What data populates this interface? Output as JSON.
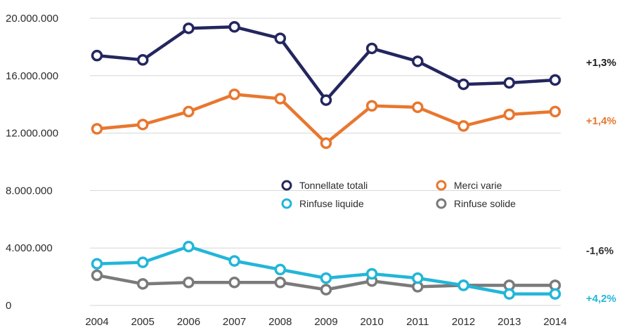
{
  "chart_data": {
    "type": "line",
    "categories": [
      "2004",
      "2005",
      "2006",
      "2007",
      "2008",
      "2009",
      "2010",
      "2011",
      "2012",
      "2013",
      "2014"
    ],
    "y_ticks": [
      "0",
      "4.000.000",
      "8.000.000",
      "12.000.000",
      "16.000.000",
      "20.000.000"
    ],
    "ylim": [
      0,
      20000000
    ],
    "grid": true,
    "legend_position": "center",
    "series": [
      {
        "name": "Tonnellate totali",
        "color": "#23265e",
        "values": [
          17400000,
          17100000,
          19300000,
          19400000,
          18600000,
          14300000,
          17900000,
          17000000,
          15400000,
          15500000,
          15700000
        ],
        "change_label": "+1,3%",
        "label_color": "#1e1e1e"
      },
      {
        "name": "Merci varie",
        "color": "#e8772e",
        "values": [
          12300000,
          12600000,
          13500000,
          14700000,
          14400000,
          11300000,
          13900000,
          13800000,
          12500000,
          13300000,
          13500000
        ],
        "change_label": "+1,4%",
        "label_color": "#e8772e"
      },
      {
        "name": "Rinfuse liquide",
        "color": "#22b6d9",
        "values": [
          2900000,
          3000000,
          4100000,
          3100000,
          2500000,
          1900000,
          2200000,
          1900000,
          1400000,
          800000,
          800000
        ],
        "change_label": "+4,2%",
        "label_color": "#22b6d9"
      },
      {
        "name": "Rinfuse solide",
        "color": "#7a7a7a",
        "values": [
          2100000,
          1500000,
          1600000,
          1600000,
          1600000,
          1100000,
          1700000,
          1300000,
          1400000,
          1400000,
          1400000
        ],
        "change_label": "-1,6%",
        "label_color": "#333333"
      }
    ]
  }
}
